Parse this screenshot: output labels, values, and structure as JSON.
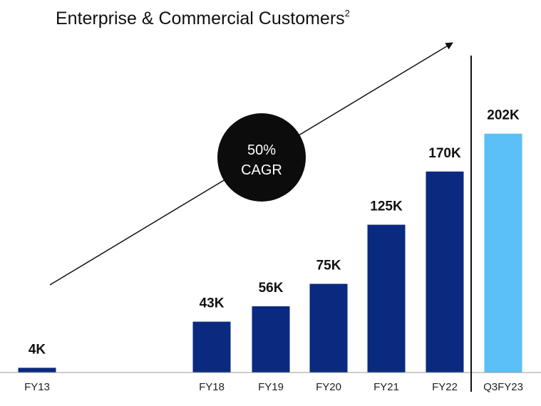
{
  "title": {
    "text": "Enterprise & Commercial Customers",
    "superscript": "2"
  },
  "badge": {
    "line1": "50%",
    "line2": "CAGR"
  },
  "colors": {
    "bar": "#0A2A80",
    "highlight": "#5BBFF8",
    "badge": "#0C0C0C"
  },
  "chart_data": {
    "type": "bar",
    "title": "Enterprise & Commercial Customers",
    "categories": [
      "FY13",
      "FY18",
      "FY19",
      "FY20",
      "FY21",
      "FY22",
      "Q3FY23"
    ],
    "values": [
      4,
      43,
      56,
      75,
      125,
      170,
      202
    ],
    "value_labels": [
      "4K",
      "43K",
      "56K",
      "75K",
      "125K",
      "170K",
      "202K"
    ],
    "unit": "K",
    "highlighted_category": "Q3FY23",
    "ylim": [
      0,
      260
    ],
    "grid": false,
    "legend": "none",
    "annotations": [
      "50% CAGR"
    ]
  }
}
